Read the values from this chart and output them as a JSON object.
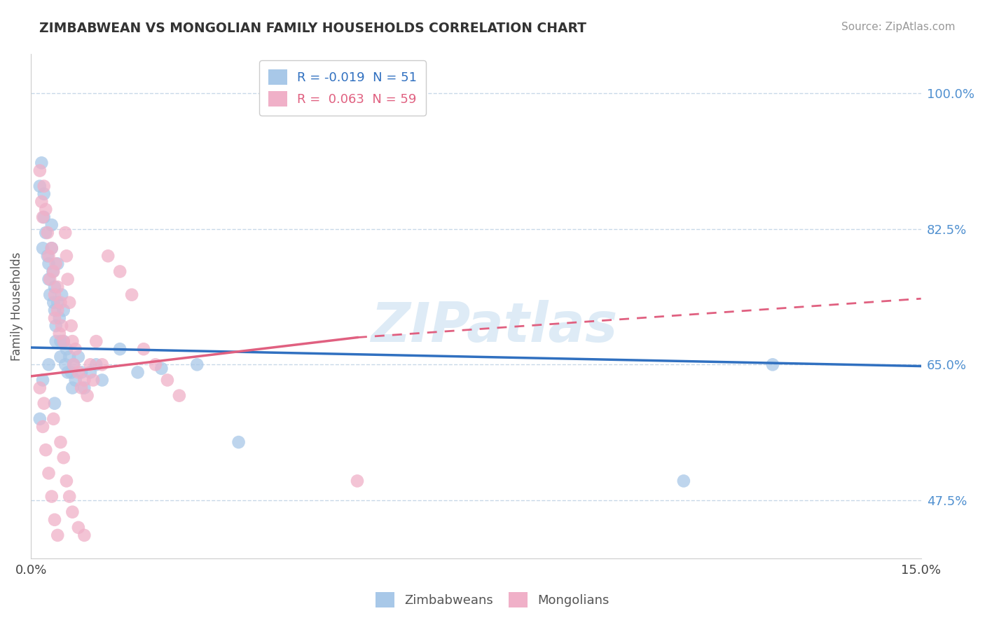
{
  "title": "ZIMBABWEAN VS MONGOLIAN FAMILY HOUSEHOLDS CORRELATION CHART",
  "source": "Source: ZipAtlas.com",
  "ylabel": "Family Households",
  "y_ticks": [
    47.5,
    65.0,
    82.5,
    100.0
  ],
  "y_tick_labels": [
    "47.5%",
    "65.0%",
    "82.5%",
    "100.0%"
  ],
  "xlim": [
    0.0,
    15.0
  ],
  "ylim": [
    40.0,
    105.0
  ],
  "legend_blue_r": "-0.019",
  "legend_blue_n": "51",
  "legend_pink_r": "0.063",
  "legend_pink_n": "59",
  "legend_blue_label": "Zimbabweans",
  "legend_pink_label": "Mongolians",
  "watermark": "ZIPatlas",
  "blue_color": "#a8c8e8",
  "pink_color": "#f0b0c8",
  "blue_line_color": "#3070c0",
  "pink_line_color": "#e06080",
  "background_color": "#ffffff",
  "grid_color": "#c8d8e8",
  "blue_line_x0": 0.0,
  "blue_line_y0": 67.2,
  "blue_line_x1": 15.0,
  "blue_line_y1": 64.8,
  "pink_solid_x0": 0.0,
  "pink_solid_y0": 63.5,
  "pink_solid_x1": 5.5,
  "pink_solid_y1": 68.5,
  "pink_dash_x0": 5.5,
  "pink_dash_y0": 68.5,
  "pink_dash_x1": 15.0,
  "pink_dash_y1": 73.5,
  "blue_x": [
    0.15,
    0.18,
    0.2,
    0.22,
    0.22,
    0.25,
    0.28,
    0.3,
    0.3,
    0.32,
    0.35,
    0.35,
    0.37,
    0.38,
    0.4,
    0.4,
    0.42,
    0.42,
    0.45,
    0.45,
    0.48,
    0.5,
    0.5,
    0.52,
    0.55,
    0.55,
    0.58,
    0.6,
    0.62,
    0.65,
    0.68,
    0.7,
    0.72,
    0.75,
    0.8,
    0.85,
    0.9,
    1.0,
    1.1,
    1.2,
    1.5,
    1.8,
    2.2,
    2.8,
    3.5,
    0.15,
    0.2,
    0.3,
    0.4,
    12.5,
    11.0
  ],
  "blue_y": [
    88.0,
    91.0,
    80.0,
    87.0,
    84.0,
    82.0,
    79.0,
    76.0,
    78.0,
    74.0,
    83.0,
    80.0,
    77.0,
    73.0,
    75.0,
    72.0,
    70.0,
    68.0,
    78.0,
    73.0,
    71.0,
    68.0,
    66.0,
    74.0,
    72.0,
    68.0,
    65.0,
    67.0,
    64.0,
    66.0,
    64.0,
    62.0,
    65.0,
    63.0,
    66.0,
    64.0,
    62.0,
    64.0,
    65.0,
    63.0,
    67.0,
    64.0,
    64.5,
    65.0,
    55.0,
    58.0,
    63.0,
    65.0,
    60.0,
    65.0,
    50.0
  ],
  "pink_x": [
    0.15,
    0.18,
    0.2,
    0.22,
    0.25,
    0.28,
    0.3,
    0.32,
    0.35,
    0.38,
    0.4,
    0.4,
    0.42,
    0.45,
    0.45,
    0.48,
    0.5,
    0.52,
    0.55,
    0.58,
    0.6,
    0.62,
    0.65,
    0.68,
    0.7,
    0.72,
    0.75,
    0.8,
    0.85,
    0.9,
    0.95,
    1.0,
    1.05,
    1.1,
    1.2,
    1.3,
    1.5,
    1.7,
    1.9,
    2.1,
    2.3,
    2.5,
    0.2,
    0.25,
    0.3,
    0.35,
    0.4,
    0.45,
    0.5,
    0.55,
    0.6,
    0.65,
    0.7,
    0.8,
    0.9,
    5.5,
    0.15,
    0.22,
    0.38
  ],
  "pink_y": [
    90.0,
    86.0,
    84.0,
    88.0,
    85.0,
    82.0,
    79.0,
    76.0,
    80.0,
    77.0,
    74.0,
    71.0,
    78.0,
    75.0,
    72.0,
    69.0,
    73.0,
    70.0,
    68.0,
    82.0,
    79.0,
    76.0,
    73.0,
    70.0,
    68.0,
    65.0,
    67.0,
    64.0,
    62.0,
    63.0,
    61.0,
    65.0,
    63.0,
    68.0,
    65.0,
    79.0,
    77.0,
    74.0,
    67.0,
    65.0,
    63.0,
    61.0,
    57.0,
    54.0,
    51.0,
    48.0,
    45.0,
    43.0,
    55.0,
    53.0,
    50.0,
    48.0,
    46.0,
    44.0,
    43.0,
    50.0,
    62.0,
    60.0,
    58.0
  ]
}
